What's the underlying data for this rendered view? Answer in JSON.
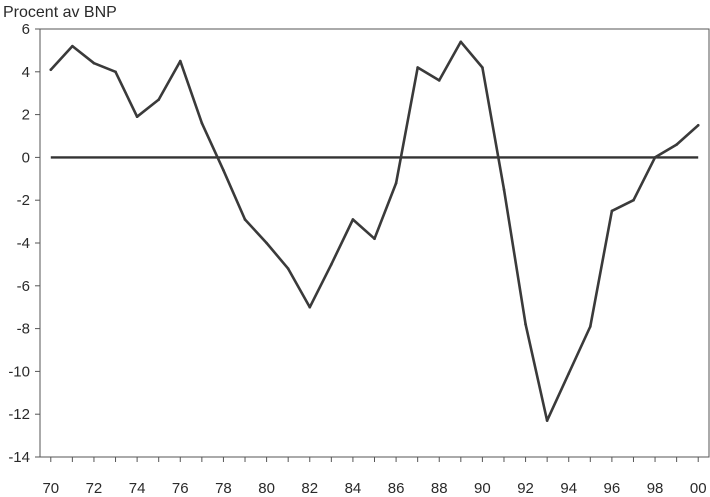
{
  "chart_data": {
    "type": "line",
    "ylabel": "Procent av BNP",
    "xlabel": "",
    "title": "",
    "xlim": [
      1969.5,
      2000.5
    ],
    "ylim": [
      -14,
      6
    ],
    "yticks": [
      6,
      4,
      2,
      0,
      -2,
      -4,
      -6,
      -8,
      -10,
      -12,
      -14
    ],
    "xtick_labels": [
      {
        "year": 1970,
        "label": "70"
      },
      {
        "year": 1972,
        "label": "72"
      },
      {
        "year": 1974,
        "label": "74"
      },
      {
        "year": 1976,
        "label": "76"
      },
      {
        "year": 1978,
        "label": "78"
      },
      {
        "year": 1980,
        "label": "80"
      },
      {
        "year": 1982,
        "label": "82"
      },
      {
        "year": 1984,
        "label": "84"
      },
      {
        "year": 1986,
        "label": "86"
      },
      {
        "year": 1988,
        "label": "88"
      },
      {
        "year": 1990,
        "label": "90"
      },
      {
        "year": 1992,
        "label": "92"
      },
      {
        "year": 1994,
        "label": "94"
      },
      {
        "year": 1996,
        "label": "96"
      },
      {
        "year": 1998,
        "label": "98"
      },
      {
        "year": 2000,
        "label": "00"
      }
    ],
    "x": [
      1970,
      1971,
      1972,
      1973,
      1974,
      1975,
      1976,
      1977,
      1978,
      1979,
      1980,
      1981,
      1982,
      1983,
      1984,
      1985,
      1986,
      1987,
      1988,
      1989,
      1990,
      1991,
      1992,
      1993,
      1994,
      1995,
      1996,
      1997,
      1998,
      1999,
      2000
    ],
    "series": [
      {
        "values": [
          4.1,
          5.2,
          4.4,
          4.0,
          1.9,
          2.7,
          4.5,
          1.6,
          -0.6,
          -2.9,
          -4.0,
          -5.2,
          -7.0,
          -5.0,
          -2.9,
          -3.8,
          -1.2,
          4.2,
          3.6,
          5.4,
          4.2,
          -1.5,
          -7.8,
          -12.3,
          -10.1,
          -7.9,
          -2.5,
          -2.0,
          0.0,
          0.6,
          1.5
        ],
        "color": "#3a3a3a"
      }
    ],
    "reference_line": {
      "y": 0
    },
    "grid": false,
    "legend": "none"
  }
}
